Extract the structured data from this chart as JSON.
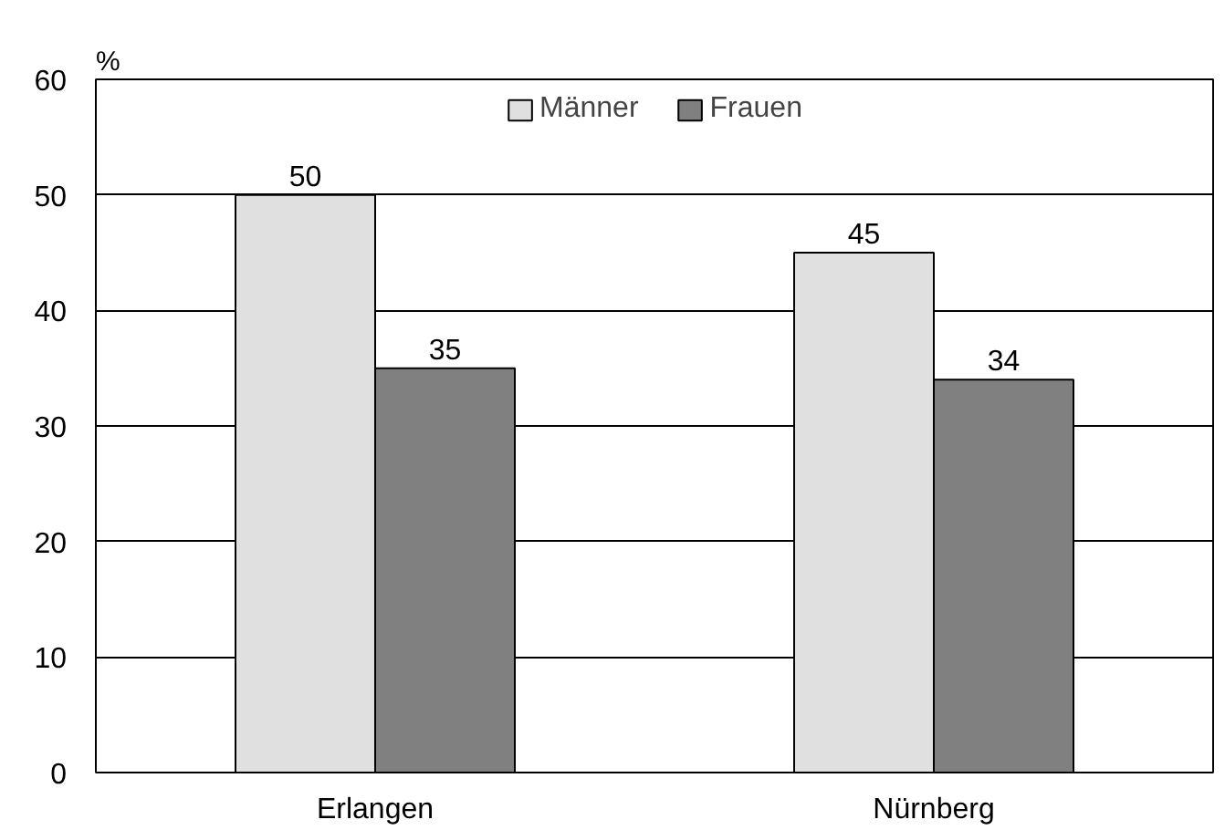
{
  "chart_data": {
    "type": "bar",
    "ylabel": "%",
    "categories": [
      "Erlangen",
      "Nürnberg"
    ],
    "series": [
      {
        "name": "Männer",
        "color": "#e0e0e0",
        "values": [
          50,
          45
        ]
      },
      {
        "name": "Frauen",
        "color": "#808080",
        "values": [
          35,
          34
        ]
      }
    ],
    "ylim": [
      0,
      60
    ],
    "yticks": [
      0,
      10,
      20,
      30,
      40,
      50,
      60
    ],
    "grid": "y",
    "legend": "top",
    "data_labels": true
  }
}
